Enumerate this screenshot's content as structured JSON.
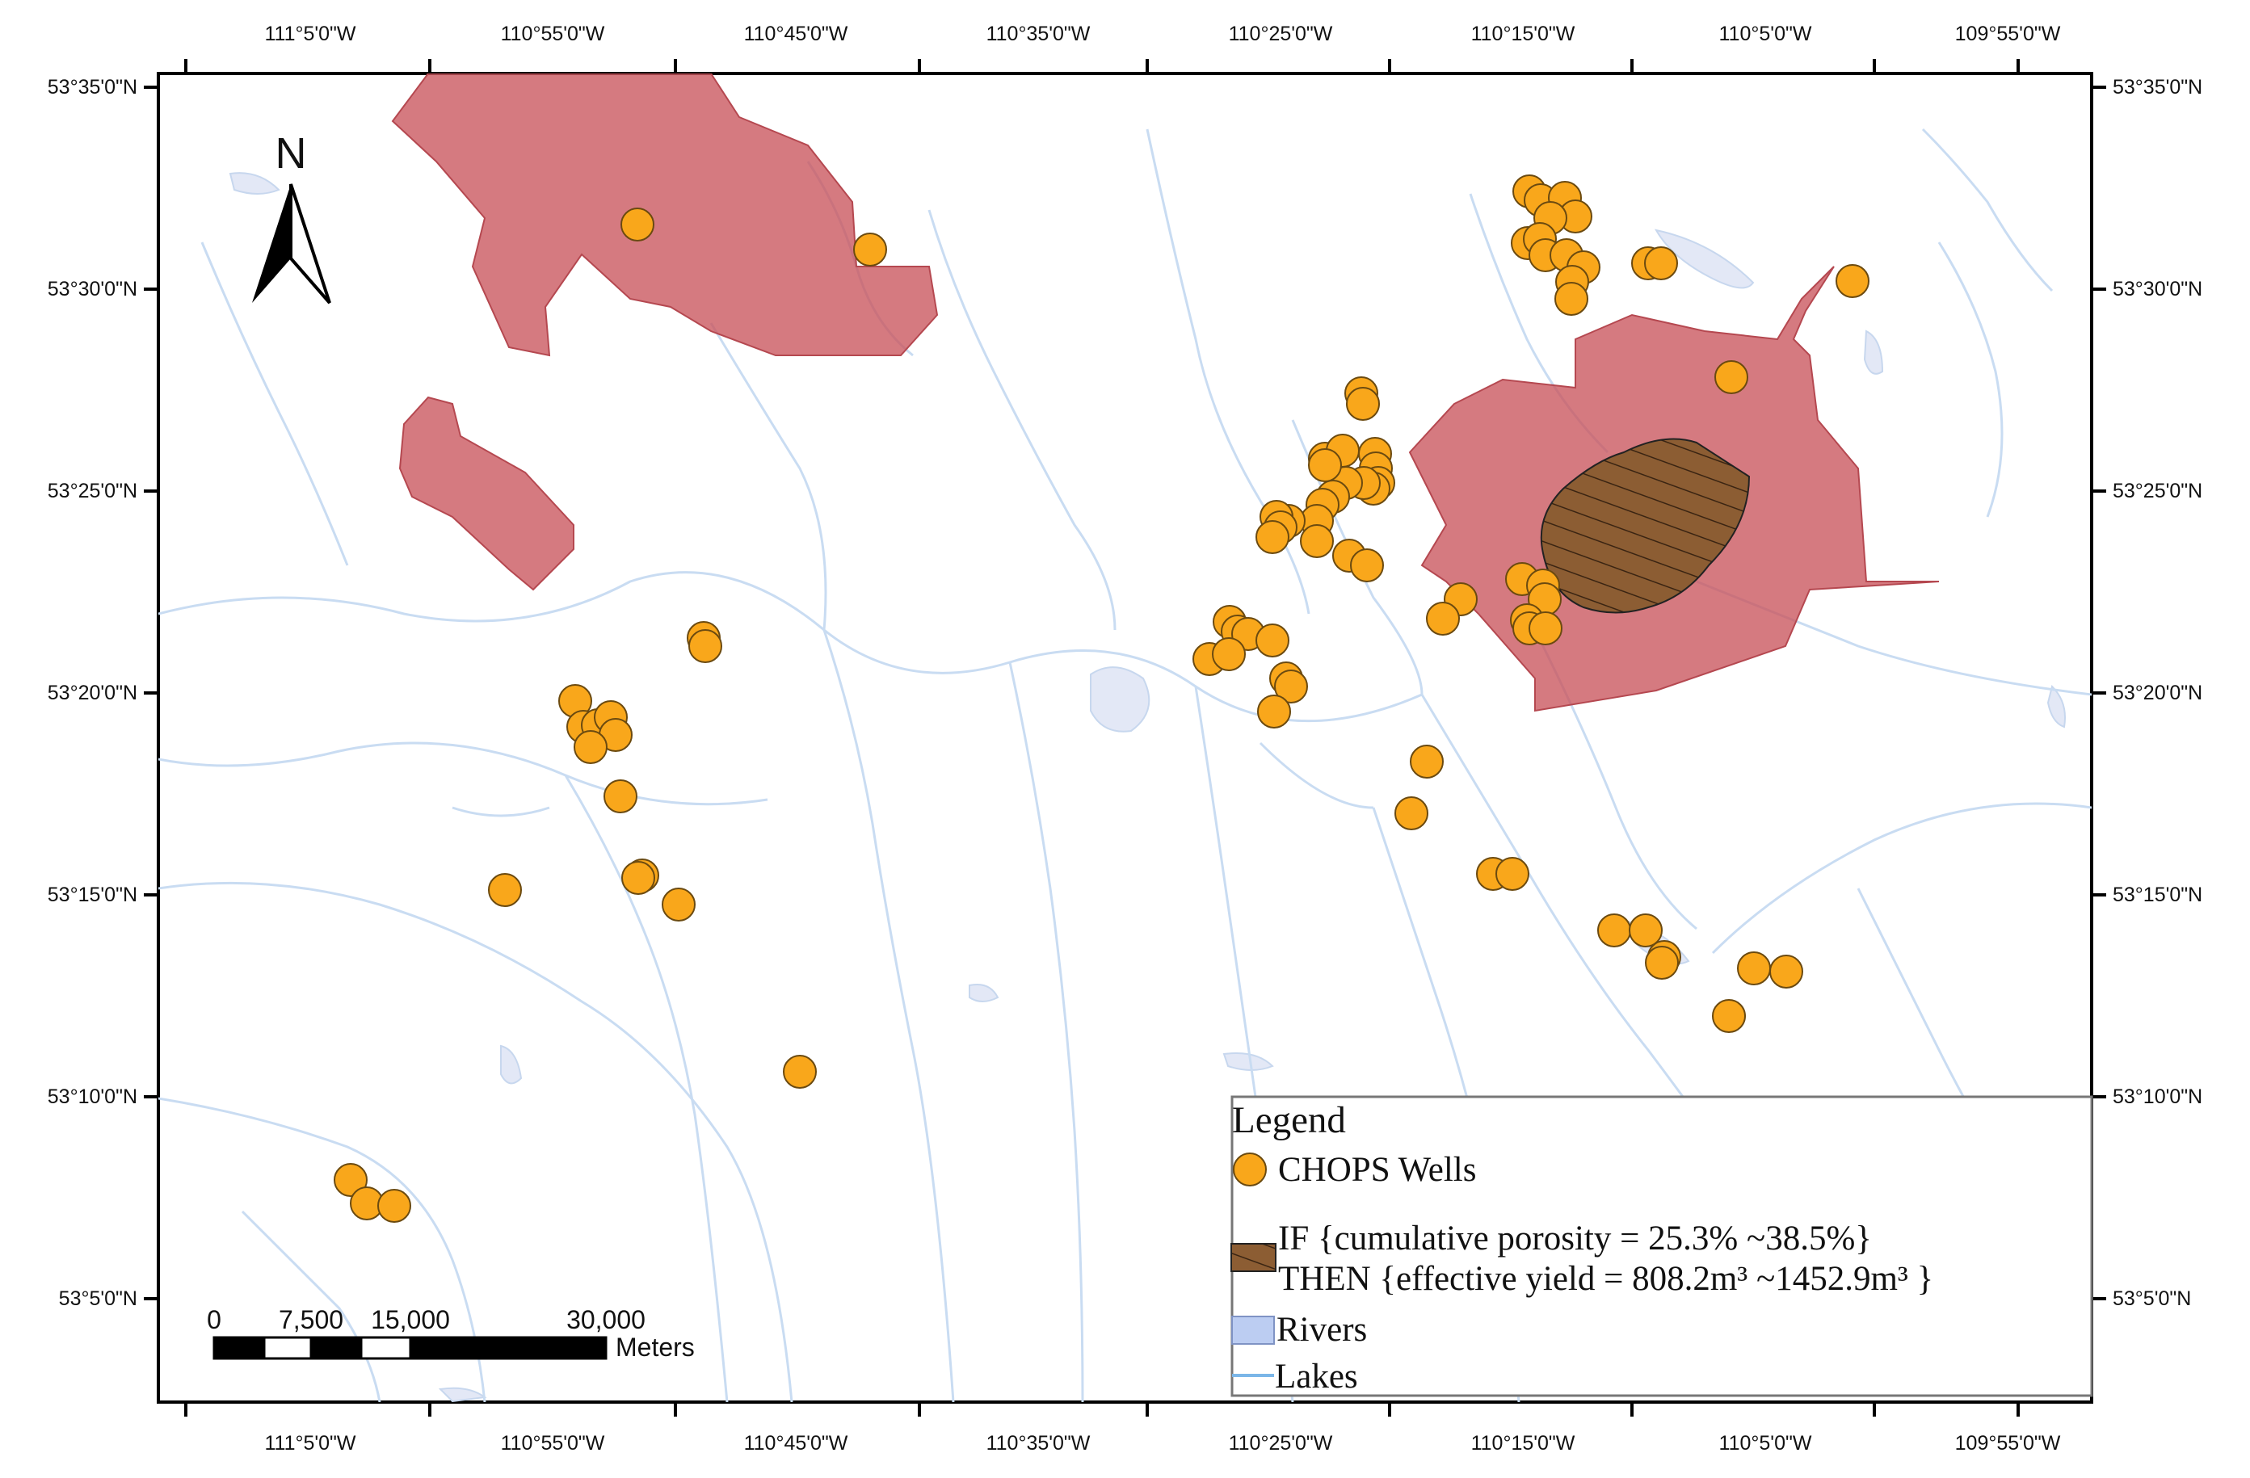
{
  "map": {
    "lon_labels": [
      "111°5'0\"W",
      "110°55'0\"W",
      "110°45'0\"W",
      "110°35'0\"W",
      "110°25'0\"W",
      "110°15'0\"W",
      "110°5'0\"W",
      "109°55'0\"W"
    ],
    "lat_labels": [
      "53°35'0\"N",
      "53°30'0\"N",
      "53°25'0\"N",
      "53°20'0\"N",
      "53°15'0\"N",
      "53°10'0\"N",
      "53°5'0\"N"
    ],
    "north_arrow_label": "N"
  },
  "scale_bar": {
    "labels": [
      "0",
      "7,500",
      "15,000",
      "30,000"
    ],
    "unit": "Meters"
  },
  "legend": {
    "title": "Legend",
    "wells_label": "CHOPS Wells",
    "rule_line1": "IF {cumulative porosity = 25.3% ~38.5%}",
    "rule_line2": "THEN {effective yield = 808.2m³ ~1452.9m³ }",
    "rivers_label": "Rivers",
    "lakes_label": "Lakes"
  },
  "colors": {
    "well_fill": "#F9A71B",
    "region_fill": "#C9545C",
    "target_fill": "#8C5D33",
    "water": "#D9E6F6",
    "river_line": "#B8D2EE"
  }
}
